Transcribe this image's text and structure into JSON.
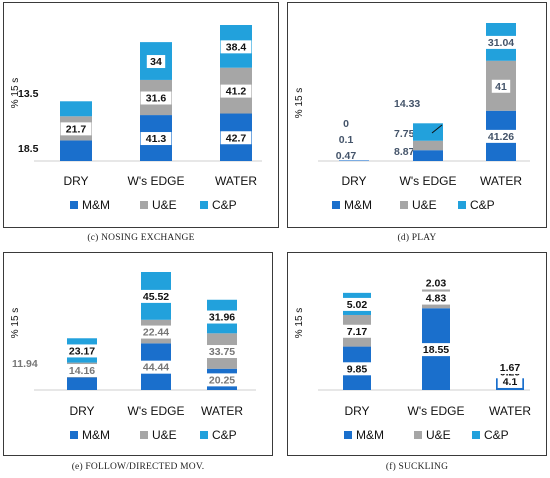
{
  "colors": {
    "mm": "#1a6fcc",
    "ue": "#a6a6a6",
    "cp": "#22a1dc",
    "text": "#111111",
    "play_val": "#44546a"
  },
  "legend": {
    "mm": "M&M",
    "ue": "U&E",
    "cp": "C&P"
  },
  "ylabel": "% 15 s",
  "captions": {
    "c": "(c) NOSING EXCHANGE",
    "d": "(d) PLAY",
    "e": "(e) FOLLOW/DIRECTED MOV.",
    "f": "(f) SUCKLING"
  },
  "chart_data": [
    {
      "id": "c",
      "type": "bar",
      "stacked": true,
      "title": "",
      "xlabel": "",
      "ylabel": "% 15 s",
      "categories": [
        "DRY",
        "W's EDGE",
        "WATER"
      ],
      "series": [
        {
          "name": "M&M",
          "values": [
            18.5,
            41.3,
            42.7
          ]
        },
        {
          "name": "U&E",
          "values": [
            21.7,
            31.6,
            41.2
          ]
        },
        {
          "name": "C&P",
          "values": [
            13.5,
            34,
            38.4
          ]
        }
      ],
      "labels": [
        "18.5",
        "41.3",
        "42.7",
        "21.7",
        "31.6",
        "41.2",
        "13.5",
        "34",
        "38.4"
      ],
      "legend": "bottom"
    },
    {
      "id": "d",
      "type": "bar",
      "stacked": true,
      "title": "",
      "xlabel": "",
      "ylabel": "% 15 s",
      "categories": [
        "DRY",
        "W's EDGE",
        "WATER"
      ],
      "series": [
        {
          "name": "M&M",
          "values": [
            0.47,
            8.87,
            41.26
          ]
        },
        {
          "name": "U&E",
          "values": [
            0.1,
            7.75,
            41
          ]
        },
        {
          "name": "C&P",
          "values": [
            0,
            14.33,
            31.04
          ]
        }
      ],
      "labels": [
        "0.47",
        "8.87",
        "41.26",
        "0.1",
        "7.75",
        "41",
        "0",
        "14.33",
        "31.04"
      ],
      "legend": "bottom"
    },
    {
      "id": "e",
      "type": "bar",
      "stacked": true,
      "title": "",
      "xlabel": "",
      "ylabel": "% 15 s",
      "categories": [
        "DRY",
        "W's EDGE",
        "WATER"
      ],
      "series": [
        {
          "name": "M&M",
          "values": [
            11.94,
            44.44,
            20.25
          ]
        },
        {
          "name": "U&E",
          "values": [
            14.16,
            22.44,
            33.75
          ]
        },
        {
          "name": "C&P",
          "values": [
            23.17,
            45.52,
            31.96
          ]
        }
      ],
      "labels": [
        "11.94",
        "44.44",
        "20.25",
        "14.16",
        "22.44",
        "33.75",
        "23.17",
        "45.52",
        "31.96"
      ],
      "legend": "bottom"
    },
    {
      "id": "f",
      "type": "bar",
      "stacked": true,
      "title": "",
      "xlabel": "",
      "ylabel": "% 15 s",
      "categories": [
        "DRY",
        "W's EDGE",
        "WATER"
      ],
      "series": [
        {
          "name": "M&M",
          "values": [
            9.85,
            18.55,
            4.1
          ]
        },
        {
          "name": "U&E",
          "values": [
            7.17,
            4.83,
            0.29
          ]
        },
        {
          "name": "C&P",
          "values": [
            5.02,
            2.03,
            1.67
          ]
        }
      ],
      "labels": [
        "9.85",
        "18.55",
        "4.1",
        "7.17",
        "4.83",
        "0.29",
        "5.02",
        "2.03",
        "1.67"
      ],
      "legend": "bottom"
    }
  ]
}
